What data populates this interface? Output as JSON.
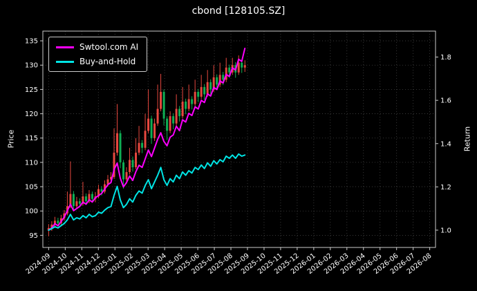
{
  "title": "cbond [128105.SZ]",
  "chart_data": {
    "type": "candlestick+line",
    "title": "cbond [128105.SZ]",
    "grid": true,
    "colors": {
      "background": "#000000",
      "text": "#ffffff",
      "grid": "#8a8a8a",
      "spine": "#cccccc",
      "up_candle": "#e8483f",
      "down_candle": "#0faf54",
      "ai_line": "#ff00ff",
      "bh_line": "#00e5e5"
    },
    "left_axis": {
      "label": "Price",
      "range": [
        92.5,
        137.0
      ],
      "ticks": [
        95,
        100,
        105,
        110,
        115,
        120,
        125,
        130,
        135
      ],
      "tick_labels": [
        "95",
        "100",
        "105",
        "110",
        "115",
        "120",
        "125",
        "130",
        "135"
      ]
    },
    "right_axis": {
      "label": "Return",
      "range": [
        0.92,
        1.92
      ],
      "ticks": [
        1.0,
        1.2,
        1.4,
        1.6,
        1.8
      ],
      "tick_labels": [
        "1.0",
        "1.2",
        "1.4",
        "1.6",
        "1.8"
      ]
    },
    "x_axis": {
      "range_months": [
        -0.35,
        23.35
      ],
      "tick_months": [
        0,
        1,
        2,
        3,
        4,
        5,
        6,
        7,
        8,
        9,
        10,
        11,
        12,
        13,
        14,
        15,
        16,
        17,
        18,
        19,
        20,
        21,
        22,
        23
      ],
      "tick_labels": [
        "2024-09",
        "2024-10",
        "2024-11",
        "2024-12",
        "2025-01",
        "2025-02",
        "2025-03",
        "2025-04",
        "2025-05",
        "2025-06",
        "2025-07",
        "2025-08",
        "2025-09",
        "2025-10",
        "2025-11",
        "2025-12",
        "2026-01",
        "2026-02",
        "2026-03",
        "2026-04",
        "2026-05",
        "2026-06",
        "2026-07",
        "2026-08"
      ]
    },
    "legend": {
      "position": "upper-left",
      "entries": [
        {
          "label": "Swtool.com AI",
          "color": "#ff00ff"
        },
        {
          "label": "Buy-and-Hold",
          "color": "#00e5e5"
        }
      ]
    },
    "candles": {
      "axis": "left",
      "x_start_months": 0,
      "x_step_months": 0.188,
      "ohlc": [
        [
          96.0,
          97.3,
          94.8,
          96.5
        ],
        [
          96.5,
          97.9,
          95.9,
          97.2
        ],
        [
          97.2,
          98.8,
          96.8,
          98.0
        ],
        [
          98.0,
          98.6,
          96.9,
          97.5
        ],
        [
          97.5,
          99.2,
          97.1,
          98.5
        ],
        [
          98.5,
          100.2,
          98.0,
          99.5
        ],
        [
          99.5,
          104.0,
          99.1,
          101.0
        ],
        [
          101.0,
          110.2,
          100.6,
          103.5
        ],
        [
          103.5,
          104.1,
          100.3,
          101.0
        ],
        [
          101.0,
          102.9,
          100.4,
          102.0
        ],
        [
          102.0,
          102.6,
          100.8,
          101.5
        ],
        [
          101.5,
          106.0,
          101.1,
          103.0
        ],
        [
          103.0,
          103.6,
          101.3,
          102.0
        ],
        [
          102.0,
          104.3,
          101.6,
          103.5
        ],
        [
          103.5,
          104.0,
          101.9,
          102.5
        ],
        [
          102.5,
          103.9,
          101.8,
          103.0
        ],
        [
          103.0,
          105.4,
          102.6,
          104.5
        ],
        [
          104.5,
          105.1,
          103.2,
          104.0
        ],
        [
          104.0,
          106.3,
          103.6,
          105.5
        ],
        [
          105.5,
          107.4,
          105.0,
          106.5
        ],
        [
          106.5,
          108.0,
          105.7,
          107.0
        ],
        [
          107.0,
          117.0,
          106.6,
          112.0
        ],
        [
          112.0,
          122.0,
          111.4,
          116.0
        ],
        [
          116.0,
          116.6,
          108.8,
          110.0
        ],
        [
          110.0,
          110.5,
          104.6,
          106.5
        ],
        [
          106.5,
          109.0,
          105.6,
          108.0
        ],
        [
          108.0,
          113.0,
          107.5,
          110.5
        ],
        [
          110.5,
          111.2,
          108.1,
          109.0
        ],
        [
          109.0,
          115.0,
          108.6,
          112.0
        ],
        [
          112.0,
          117.5,
          111.5,
          114.0
        ],
        [
          114.0,
          114.6,
          111.9,
          113.0
        ],
        [
          113.0,
          120.0,
          112.5,
          116.5
        ],
        [
          116.5,
          125.0,
          116.0,
          119.0
        ],
        [
          119.0,
          119.6,
          113.8,
          115.0
        ],
        [
          115.0,
          119.0,
          114.4,
          118.0
        ],
        [
          118.0,
          126.0,
          117.5,
          121.0
        ],
        [
          121.0,
          128.2,
          120.5,
          124.5
        ],
        [
          124.5,
          125.0,
          117.6,
          119.0
        ],
        [
          119.0,
          119.5,
          114.6,
          116.5
        ],
        [
          116.5,
          120.5,
          116.0,
          119.5
        ],
        [
          119.5,
          120.1,
          116.8,
          118.0
        ],
        [
          118.0,
          124.0,
          117.5,
          121.0
        ],
        [
          121.0,
          121.6,
          118.4,
          119.5
        ],
        [
          119.5,
          125.5,
          119.0,
          122.5
        ],
        [
          122.5,
          123.1,
          119.9,
          121.0
        ],
        [
          121.0,
          126.0,
          120.5,
          123.0
        ],
        [
          123.0,
          123.6,
          120.9,
          122.0
        ],
        [
          122.0,
          127.0,
          121.6,
          124.5
        ],
        [
          124.5,
          125.1,
          122.4,
          123.5
        ],
        [
          123.5,
          128.0,
          123.0,
          125.5
        ],
        [
          125.5,
          126.1,
          122.9,
          124.0
        ],
        [
          124.0,
          129.0,
          123.5,
          126.5
        ],
        [
          126.5,
          127.1,
          123.9,
          125.0
        ],
        [
          125.0,
          130.0,
          124.5,
          127.5
        ],
        [
          127.5,
          128.1,
          124.9,
          126.0
        ],
        [
          126.0,
          130.5,
          125.5,
          128.0
        ],
        [
          128.0,
          128.6,
          125.9,
          127.0
        ],
        [
          127.0,
          131.5,
          126.5,
          129.5
        ],
        [
          129.5,
          130.1,
          127.4,
          128.5
        ],
        [
          128.5,
          131.5,
          128.0,
          130.0
        ],
        [
          130.0,
          130.6,
          127.4,
          128.5
        ],
        [
          128.5,
          132.0,
          128.0,
          130.5
        ],
        [
          130.5,
          131.1,
          128.4,
          129.5
        ],
        [
          129.5,
          131.0,
          128.6,
          130.0
        ]
      ]
    },
    "series": [
      {
        "name": "Swtool.com AI",
        "axis": "right",
        "color": "#ff00ff",
        "x_start_months": 0,
        "x_step_months": 0.188,
        "y": [
          1.0,
          1.01,
          1.03,
          1.02,
          1.04,
          1.06,
          1.09,
          1.12,
          1.09,
          1.1,
          1.11,
          1.13,
          1.12,
          1.14,
          1.13,
          1.15,
          1.16,
          1.17,
          1.19,
          1.21,
          1.22,
          1.28,
          1.31,
          1.24,
          1.2,
          1.22,
          1.25,
          1.23,
          1.27,
          1.3,
          1.29,
          1.33,
          1.37,
          1.34,
          1.38,
          1.42,
          1.45,
          1.41,
          1.39,
          1.43,
          1.44,
          1.48,
          1.46,
          1.51,
          1.5,
          1.54,
          1.53,
          1.57,
          1.56,
          1.6,
          1.59,
          1.63,
          1.62,
          1.66,
          1.65,
          1.69,
          1.68,
          1.72,
          1.71,
          1.75,
          1.74,
          1.79,
          1.78,
          1.84
        ]
      },
      {
        "name": "Buy-and-Hold",
        "axis": "right",
        "color": "#00e5e5",
        "x_start_months": 0,
        "x_step_months": 0.188,
        "y": [
          1.0,
          1.007,
          1.016,
          1.01,
          1.021,
          1.031,
          1.047,
          1.073,
          1.047,
          1.057,
          1.052,
          1.067,
          1.057,
          1.073,
          1.062,
          1.067,
          1.083,
          1.078,
          1.093,
          1.104,
          1.109,
          1.161,
          1.202,
          1.14,
          1.104,
          1.119,
          1.145,
          1.13,
          1.161,
          1.181,
          1.171,
          1.207,
          1.233,
          1.192,
          1.223,
          1.254,
          1.29,
          1.233,
          1.207,
          1.238,
          1.223,
          1.254,
          1.238,
          1.269,
          1.254,
          1.275,
          1.264,
          1.29,
          1.28,
          1.301,
          1.285,
          1.311,
          1.295,
          1.321,
          1.306,
          1.326,
          1.316,
          1.342,
          1.332,
          1.347,
          1.332,
          1.352,
          1.342,
          1.347
        ]
      }
    ]
  }
}
